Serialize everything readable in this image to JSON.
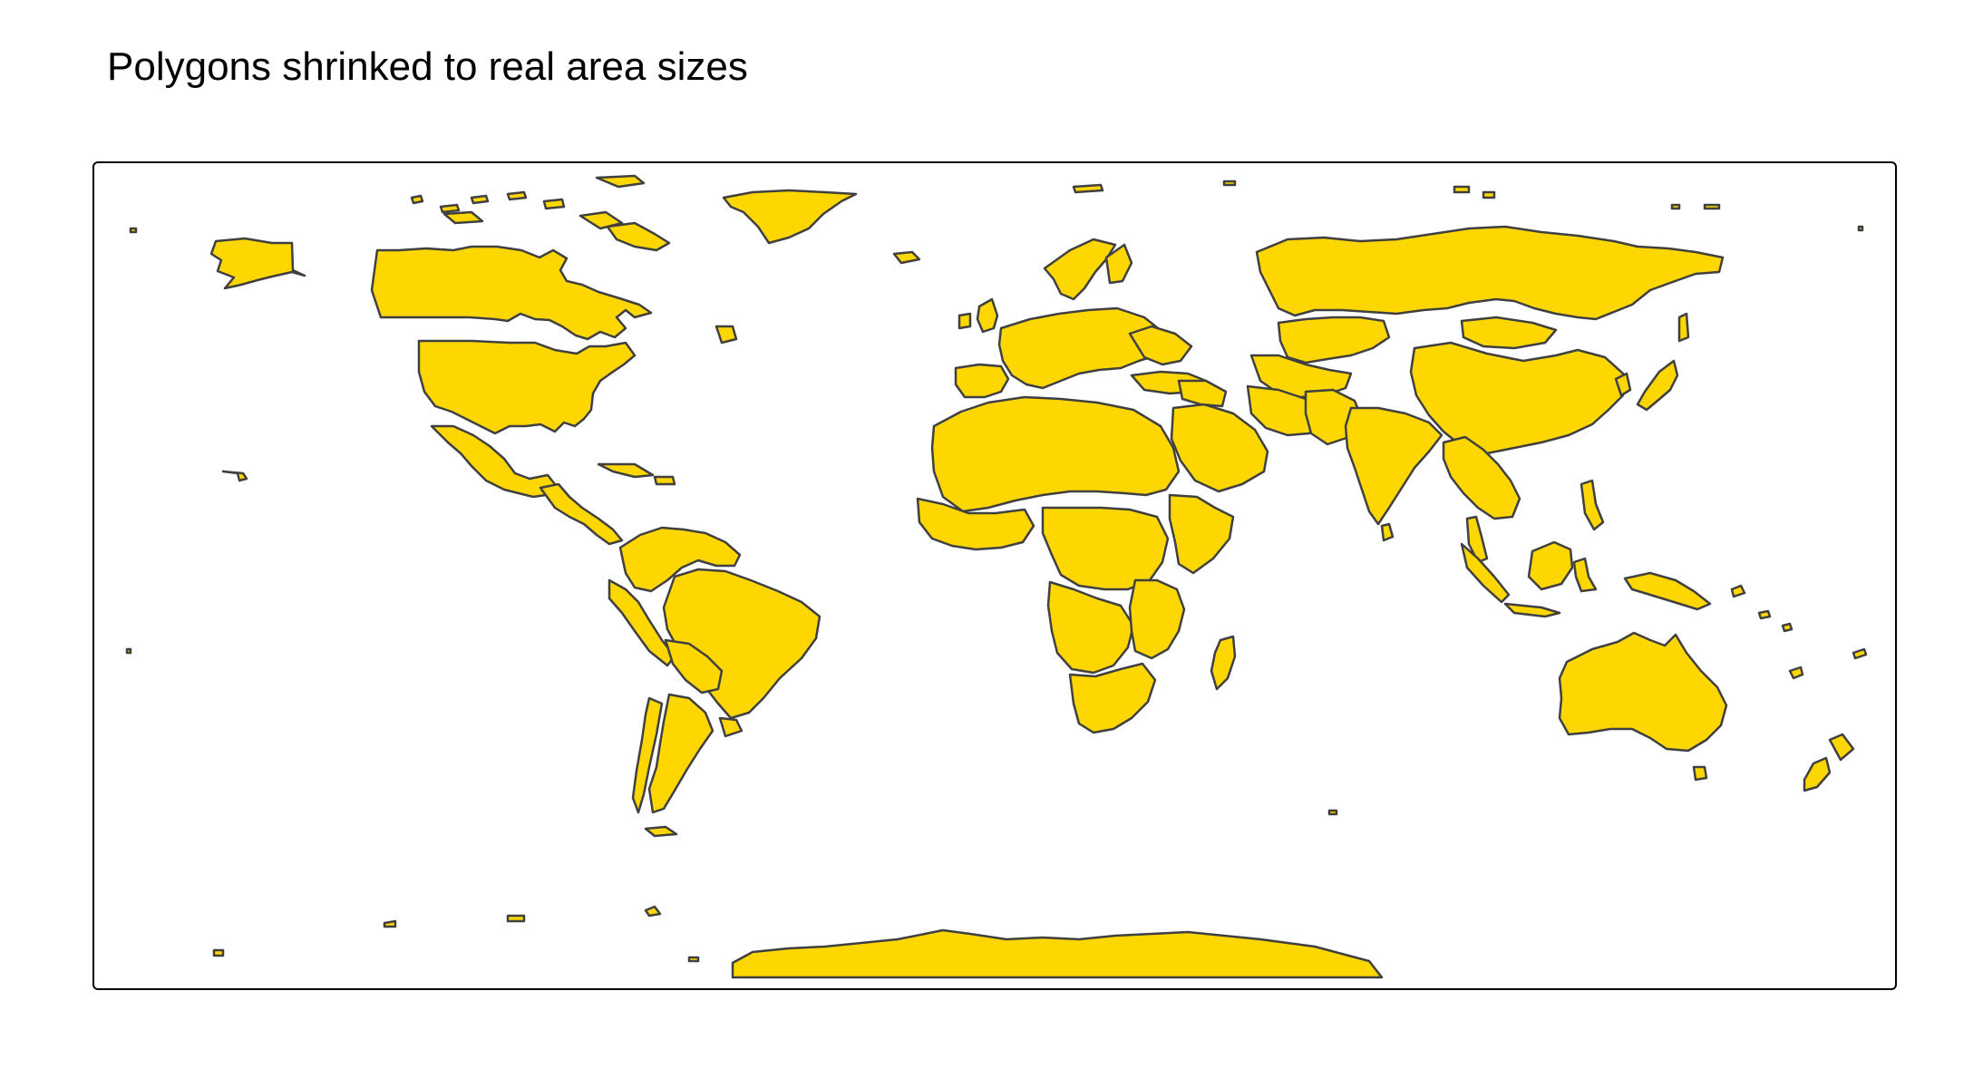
{
  "title": "Polygons shrinked to real area sizes",
  "map": {
    "projection": "equirectangular",
    "fill_color": "#FFD700",
    "border_color": "#404040",
    "frame_color": "#000000",
    "background": "#ffffff"
  }
}
